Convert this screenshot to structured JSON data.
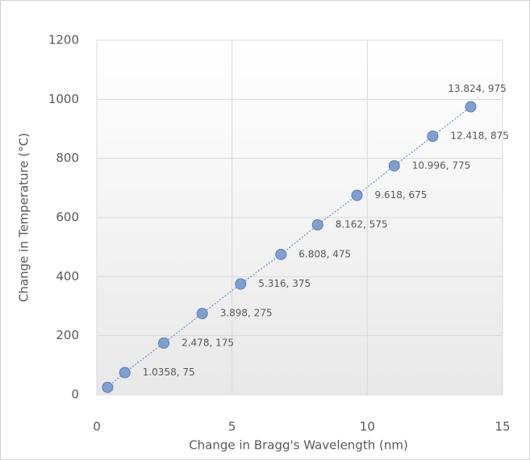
{
  "chart_data": {
    "type": "scatter",
    "xlabel": "Change in Bragg's Wavelength (nm)",
    "ylabel": "Change in Temperature (°C)",
    "x": [
      0.4,
      1.0358,
      2.478,
      3.898,
      5.316,
      6.808,
      8.162,
      9.618,
      10.996,
      12.418,
      13.824
    ],
    "series": [
      {
        "color": "#7f9fcf",
        "values": [
          25,
          75,
          175,
          275,
          375,
          475,
          575,
          675,
          775,
          875,
          975
        ],
        "value_labels": [
          null,
          "1.0358, 75",
          "2.478, 175",
          "3.898, 275",
          "5.316, 375",
          "6.808, 475",
          "8.162, 575",
          "9.618, 675",
          "10.996, 775",
          "12.418, 875",
          "13.824, 975"
        ]
      }
    ],
    "xlim": [
      0,
      15
    ],
    "xticks": [
      0,
      5,
      10,
      15
    ],
    "ylim": [
      0,
      1200
    ],
    "yticks": [
      0,
      200,
      400,
      600,
      800,
      1000,
      1200
    ],
    "grid": true
  }
}
